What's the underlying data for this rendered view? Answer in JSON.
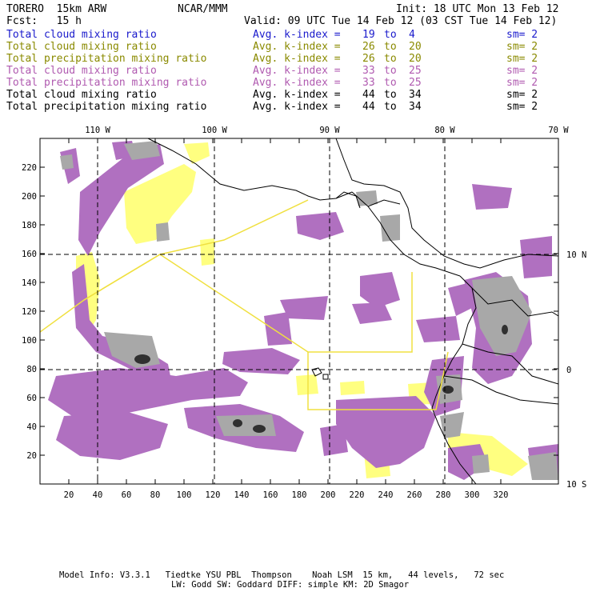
{
  "header": {
    "model": "TORERO  15km ARW",
    "org": "NCAR/MMM",
    "init": "Init: 18 UTC Mon 13 Feb 12",
    "fcst": "Fcst:   15 h",
    "valid": "Valid: 09 UTC Tue 14 Feb 12 (03 CST Tue 14 Feb 12)"
  },
  "legend": [
    {
      "field": "Total cloud mixing ratio",
      "avg": "Avg. k-index =",
      "from": "19",
      "to_word": "to",
      "to": "4",
      "sm": "sm= 2",
      "color": "#1a1acc"
    },
    {
      "field": "Total cloud mixing ratio",
      "avg": "Avg. k-index =",
      "from": "26",
      "to_word": "to",
      "to": "20",
      "sm": "sm= 2",
      "color": "#8a8a00"
    },
    {
      "field": "Total precipitation mixing ratio",
      "avg": "Avg. k-index =",
      "from": "26",
      "to_word": "to",
      "to": "20",
      "sm": "sm= 2",
      "color": "#8a8a00"
    },
    {
      "field": "Total cloud mixing ratio",
      "avg": "Avg. k-index =",
      "from": "33",
      "to_word": "to",
      "to": "25",
      "sm": "sm= 2",
      "color": "#b05ab0"
    },
    {
      "field": "Total precipitation mixing ratio",
      "avg": "Avg. k-index =",
      "from": "33",
      "to_word": "to",
      "to": "25",
      "sm": "sm= 2",
      "color": "#b05ab0"
    },
    {
      "field": "Total cloud mixing ratio",
      "avg": "Avg. k-index =",
      "from": "44",
      "to_word": "to",
      "to": "34",
      "sm": "sm= 2",
      "color": "#000000"
    },
    {
      "field": "Total precipitation mixing ratio",
      "avg": "Avg. k-index =",
      "from": "44",
      "to_word": "to",
      "to": "34",
      "sm": "sm= 2",
      "color": "#000000"
    }
  ],
  "map": {
    "x_ticks": [
      "20",
      "40",
      "60",
      "80",
      "100",
      "120",
      "140",
      "160",
      "180",
      "200",
      "220",
      "240",
      "260",
      "280",
      "300",
      "320"
    ],
    "y_ticks": [
      "20",
      "40",
      "60",
      "80",
      "100",
      "120",
      "140",
      "160",
      "180",
      "200",
      "220"
    ],
    "lon_labels": [
      "110 W",
      "100 W",
      "90 W",
      "80 W",
      "70 W"
    ],
    "lat_labels": [
      "10 N",
      "0",
      "10 S"
    ],
    "colors": {
      "purple": "#b070c0",
      "yellow": "#ffff80",
      "gray": "#a8a8a8",
      "dark": "#303030",
      "box": "#f0e040"
    }
  },
  "footer": {
    "line1": "Model Info: V3.3.1   Tiedtke YSU PBL  Thompson    Noah LSM  15 km,   44 levels,   72 sec",
    "line2": "LW: Godd SW: Goddard DIFF: simple KM: 2D Smagor"
  }
}
